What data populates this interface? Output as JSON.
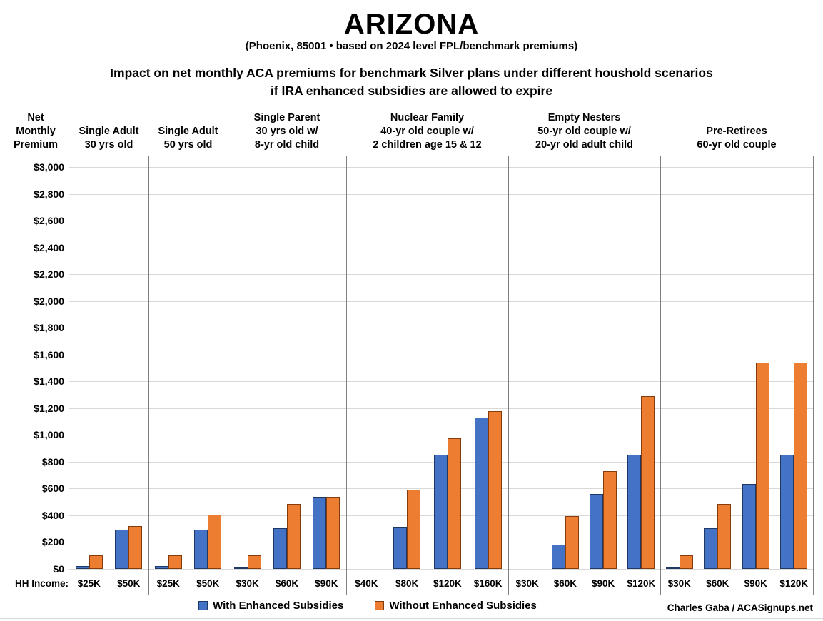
{
  "header": {
    "title": "ARIZONA",
    "subtitle": "(Phoenix, 85001 • based on 2024 level FPL/benchmark premiums)",
    "description_line1": "Impact on net monthly ACA premiums for benchmark Silver plans under different houshold scenarios",
    "description_line2": "if IRA enhanced subsidies are allowed to expire"
  },
  "chart_data": {
    "type": "bar",
    "y_axis": {
      "title": "Net Monthly Premium",
      "min": 0,
      "max": 3000,
      "tick_step": 200,
      "tick_prefix": "$",
      "grid": true
    },
    "x_axis_row_label": "HH Income:",
    "series_names": [
      "With Enhanced Subsidies",
      "Without Enhanced Subsidies"
    ],
    "colors": {
      "with_enhanced_fill": "#4472C4",
      "with_enhanced_border": "#1F3864",
      "without_enhanced_fill": "#ED7D31",
      "without_enhanced_border": "#843C0C",
      "gridline": "#d9d9d9",
      "separator": "#7f7f7f"
    },
    "groups": [
      {
        "header_lines": [
          "Single Adult",
          "30 yrs old"
        ],
        "incomes": [
          "$25K",
          "$50K"
        ],
        "with_enhanced": [
          20,
          295
        ],
        "without_enhanced": [
          100,
          320
        ]
      },
      {
        "header_lines": [
          "Single Adult",
          "50 yrs old"
        ],
        "incomes": [
          "$25K",
          "$50K"
        ],
        "with_enhanced": [
          20,
          295
        ],
        "without_enhanced": [
          100,
          405
        ]
      },
      {
        "header_lines": [
          "Single Parent",
          "30 yrs old w/",
          "8-yr old child"
        ],
        "incomes": [
          "$30K",
          "$60K",
          "$90K"
        ],
        "with_enhanced": [
          5,
          305,
          540
        ],
        "without_enhanced": [
          100,
          485,
          540
        ]
      },
      {
        "header_lines": [
          "Nuclear Family",
          "40-yr old couple w/",
          "2 children age 15 & 12"
        ],
        "incomes": [
          "$40K",
          "$80K",
          "$120K",
          "$160K"
        ],
        "with_enhanced": [
          0,
          310,
          850,
          1130
        ],
        "without_enhanced": [
          0,
          590,
          975,
          1180
        ]
      },
      {
        "header_lines": [
          "Empty Nesters",
          "50-yr old couple w/",
          "20-yr old adult child"
        ],
        "incomes": [
          "$30K",
          "$60K",
          "$90K",
          "$120K"
        ],
        "with_enhanced": [
          0,
          180,
          560,
          850
        ],
        "without_enhanced": [
          0,
          395,
          730,
          1290
        ]
      },
      {
        "header_lines": [
          "Pre-Retirees",
          "60-yr old couple"
        ],
        "incomes": [
          "$30K",
          "$60K",
          "$90K",
          "$120K"
        ],
        "with_enhanced": [
          10,
          305,
          635,
          850
        ],
        "without_enhanced": [
          100,
          485,
          1540,
          1540
        ]
      }
    ],
    "legend_position": "bottom-center"
  },
  "legend": {
    "with_label": "With Enhanced Subsidies",
    "without_label": "Without Enhanced Subsidies"
  },
  "credit": "Charles Gaba / ACASignups.net"
}
